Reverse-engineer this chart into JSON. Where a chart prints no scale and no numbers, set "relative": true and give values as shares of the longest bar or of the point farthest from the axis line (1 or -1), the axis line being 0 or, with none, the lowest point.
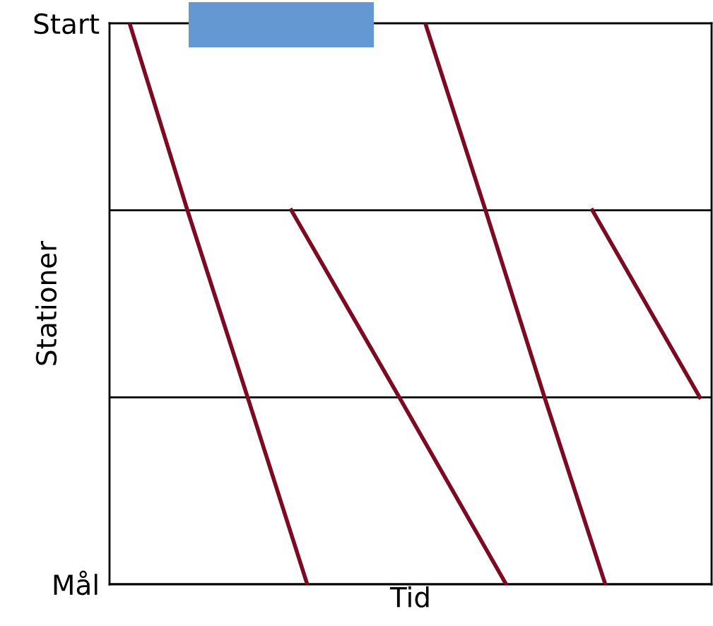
{
  "chart_data": {
    "type": "line",
    "orientation": "horizontal",
    "relative": true,
    "xlabel": "Tid",
    "ylabel": "Stationer",
    "categories": [
      "Start",
      null,
      null,
      "Mål"
    ],
    "grid": "y",
    "marker": "none",
    "line_style": "solid",
    "series": [
      {
        "color": "#7b0a22",
        "values": [
          0.034,
          0.132,
          0.234,
          0.335
        ]
      },
      {
        "color": "#7b0a22",
        "values": [
          null,
          0.308,
          0.491,
          0.672
        ]
      },
      {
        "color": "#7b0a22",
        "values": [
          0.535,
          0.637,
          0.737,
          0.84
        ]
      },
      {
        "color": "#7b0a22",
        "values": [
          null,
          0.818,
          1,
          null
        ]
      }
    ]
  }
}
